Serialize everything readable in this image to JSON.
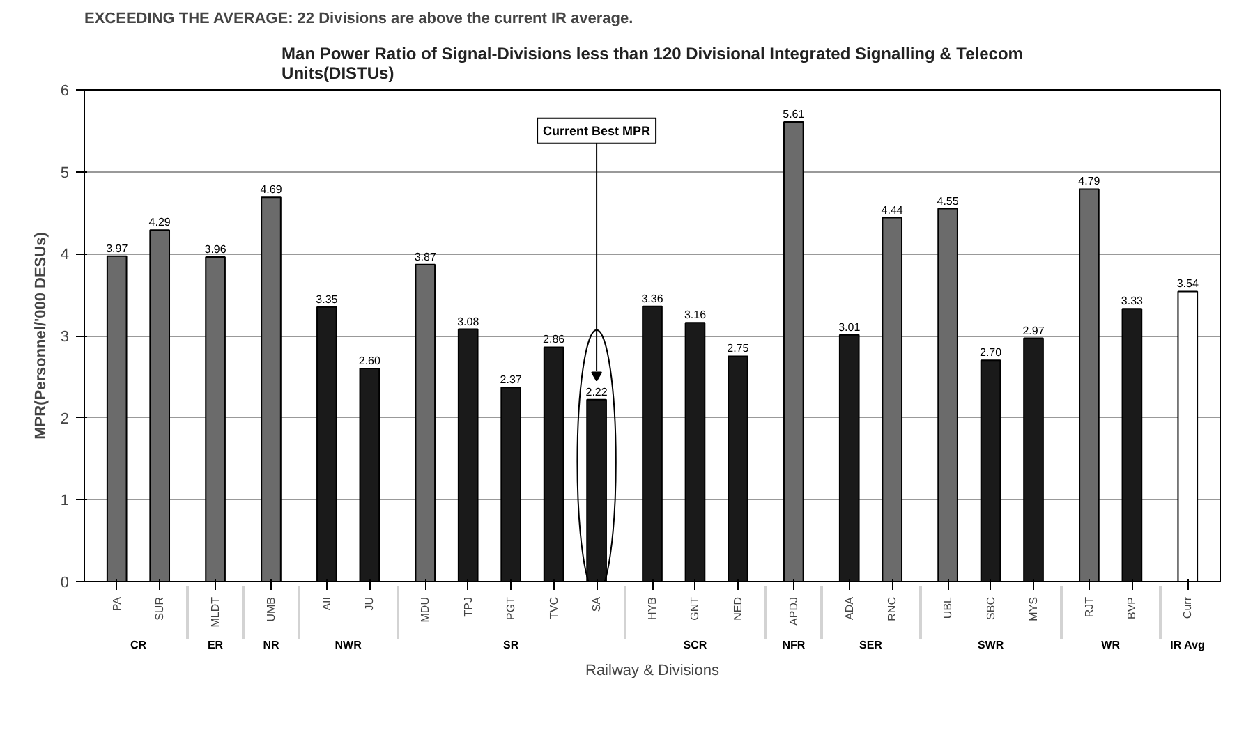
{
  "chart_data": {
    "type": "bar",
    "title": "Man Power Ratio of Signal-Divisions less than 120 Divisional Integrated Signalling & Telecom Units(DISTUs)",
    "xlabel": "Railway & Divisions",
    "ylabel": "MPR(Personnel/'000 DESUs)",
    "categories": [
      "PA",
      "SUR",
      "MLDT",
      "UMB",
      "AII",
      "JU",
      "MDU",
      "TPJ",
      "PGT",
      "TVC",
      "SA",
      "HYB",
      "GNT",
      "NED",
      "APDJ",
      "ADA",
      "RNC",
      "UBL",
      "SBC",
      "MYS",
      "RJT",
      "BVP",
      "Curr"
    ],
    "values": [
      3.97,
      4.29,
      3.96,
      4.69,
      3.35,
      2.6,
      3.87,
      3.08,
      2.37,
      2.86,
      2.22,
      3.36,
      3.16,
      2.75,
      5.61,
      3.01,
      4.44,
      4.55,
      2.7,
      2.97,
      4.79,
      3.33,
      3.54
    ],
    "value_labels": [
      "3.97",
      "4.29",
      "3.96",
      "4.69",
      "3.35",
      "2.60",
      "3.87",
      "3.08",
      "2.37",
      "2.86",
      "2.22",
      "3.36",
      "3.16",
      "2.75",
      "5.61",
      "3.01",
      "4.44",
      "4.55",
      "2.70",
      "2.97",
      "4.79",
      "3.33",
      "3.54"
    ],
    "colors": [
      "#6b6b6b",
      "#6b6b6b",
      "#6b6b6b",
      "#6b6b6b",
      "#1a1a1a",
      "#1a1a1a",
      "#6b6b6b",
      "#1a1a1a",
      "#1a1a1a",
      "#1a1a1a",
      "#1a1a1a",
      "#1a1a1a",
      "#1a1a1a",
      "#1a1a1a",
      "#6b6b6b",
      "#1a1a1a",
      "#6b6b6b",
      "#6b6b6b",
      "#1a1a1a",
      "#1a1a1a",
      "#6b6b6b",
      "#1a1a1a",
      "#ffffff"
    ],
    "ylim": [
      0,
      6
    ],
    "yticks": [
      0,
      1,
      2,
      3,
      4,
      5,
      6
    ],
    "grid": "y",
    "annotations": [
      "EXCEEDING THE AVERAGE: 22 Divisions are above the current IR average.",
      "Current Best MPR",
      "CR",
      "ER",
      "NR",
      "NWR",
      "SR",
      "SCR",
      "NFR",
      "SER",
      "SWR",
      "WR",
      "IR Avg"
    ]
  }
}
